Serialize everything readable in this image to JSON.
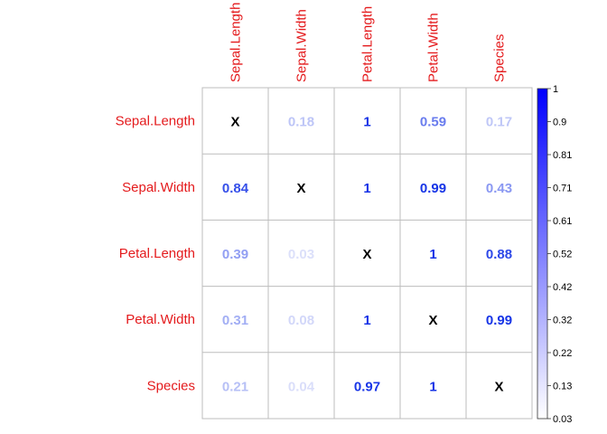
{
  "chart_data": {
    "type": "heatmap",
    "title": "",
    "row_labels": [
      "Sepal.Length",
      "Sepal.Width",
      "Petal.Length",
      "Petal.Width",
      "Species"
    ],
    "col_labels": [
      "Sepal.Length",
      "Sepal.Width",
      "Petal.Length",
      "Petal.Width",
      "Species"
    ],
    "cells": [
      [
        "X",
        "0.18",
        "1",
        "0.59",
        "0.17"
      ],
      [
        "0.84",
        "X",
        "1",
        "0.99",
        "0.43"
      ],
      [
        "0.39",
        "0.03",
        "X",
        "1",
        "0.88"
      ],
      [
        "0.31",
        "0.08",
        "1",
        "X",
        "0.99"
      ],
      [
        "0.21",
        "0.04",
        "0.97",
        "1",
        "X"
      ]
    ],
    "values": [
      [
        null,
        0.18,
        1,
        0.59,
        0.17
      ],
      [
        0.84,
        null,
        1,
        0.99,
        0.43
      ],
      [
        0.39,
        0.03,
        null,
        1,
        0.88
      ],
      [
        0.31,
        0.08,
        1,
        null,
        0.99
      ],
      [
        0.21,
        0.04,
        0.97,
        1,
        null
      ]
    ],
    "colorbar": {
      "ticks": [
        "1",
        "0.9",
        "0.81",
        "0.71",
        "0.61",
        "0.52",
        "0.42",
        "0.32",
        "0.22",
        "0.13",
        "0.03"
      ],
      "range": [
        0.03,
        1
      ],
      "color_low": "#ffffff",
      "color_high": "#0000ff"
    },
    "label_color": "#e41a1c",
    "diagonal_color": "#000000",
    "grid": true
  }
}
